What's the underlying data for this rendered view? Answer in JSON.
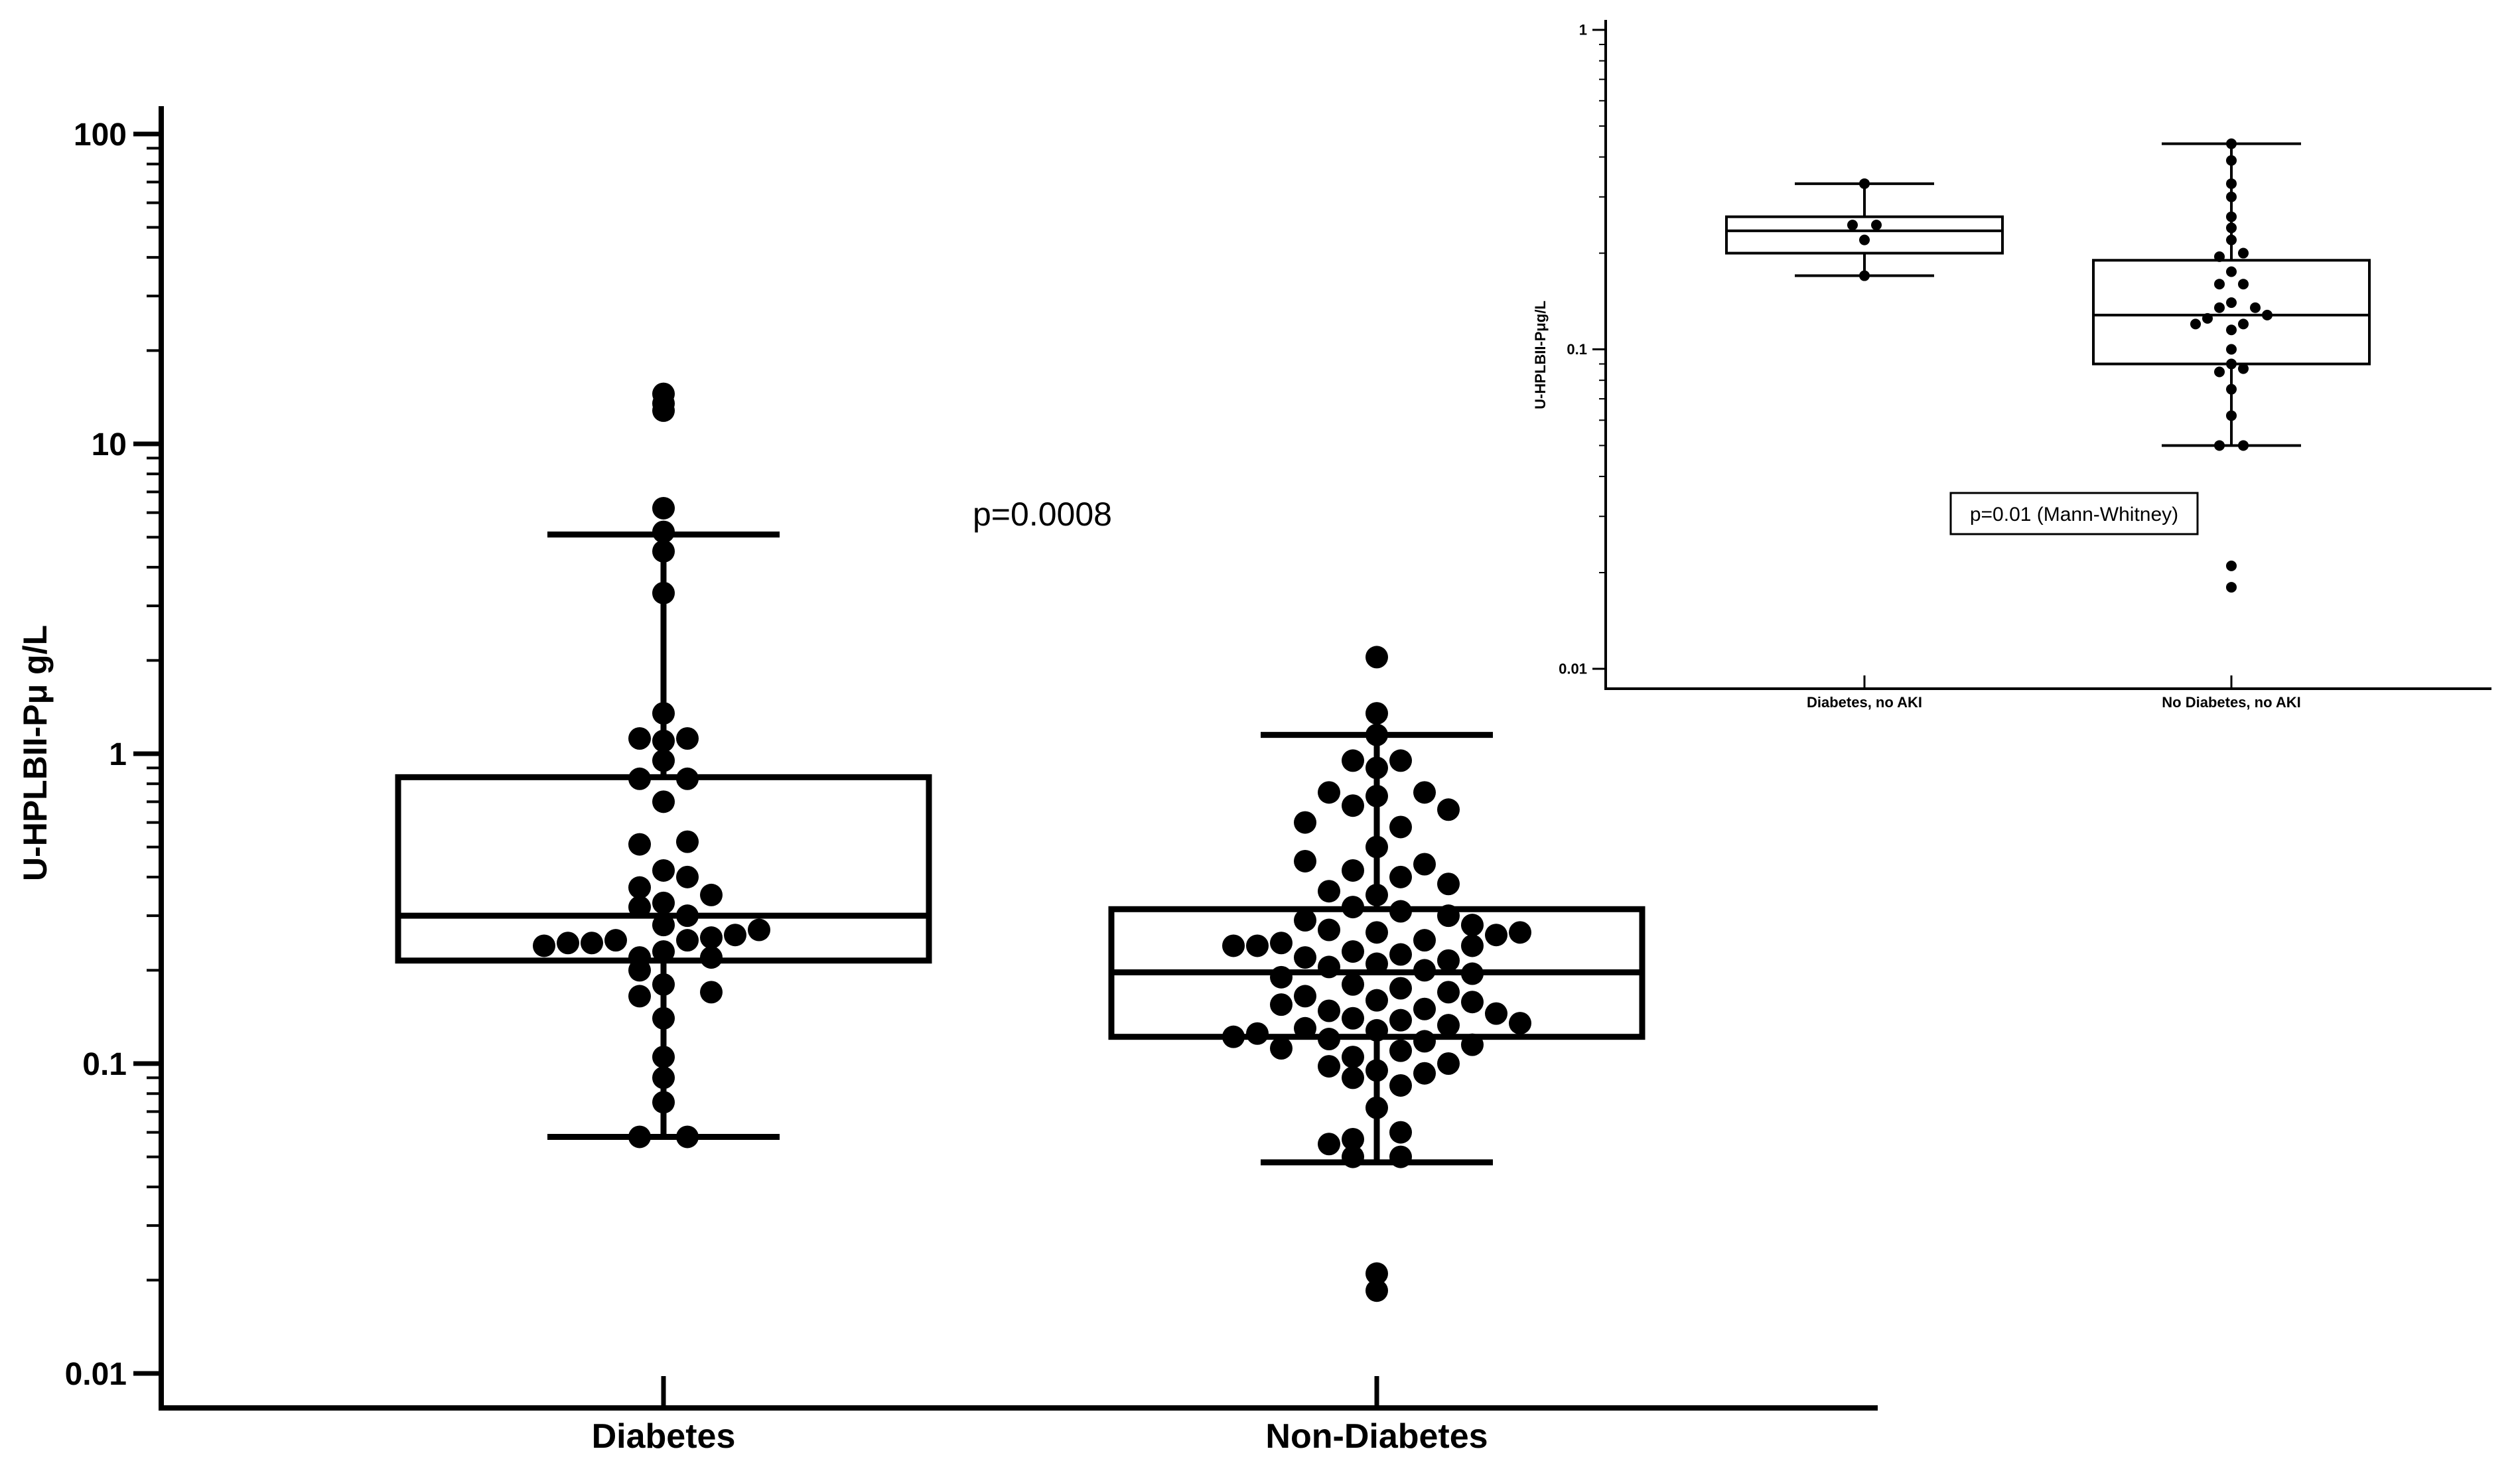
{
  "chart_data": [
    {
      "type": "box-scatter",
      "ylabel": "U-HPLBII-Pμ g/L",
      "yscale": "log",
      "ylim": [
        0.01,
        100
      ],
      "yticks": [
        {
          "value": 0.01,
          "label": "0.01"
        },
        {
          "value": 0.1,
          "label": "0.1"
        },
        {
          "value": 1,
          "label": "1"
        },
        {
          "value": 10,
          "label": "10"
        },
        {
          "value": 100,
          "label": "100"
        }
      ],
      "categories": [
        "Diabetes",
        "Non-Diabetes"
      ],
      "annotation": "p=0.0008",
      "groups": [
        {
          "name": "Diabetes",
          "box": {
            "whisker_low": 0.058,
            "q1": 0.215,
            "median": 0.3,
            "q3": 0.84,
            "whisker_high": 5.1
          },
          "points": [
            {
              "y": 14.5,
              "o": 0
            },
            {
              "y": 13.5,
              "o": 0
            },
            {
              "y": 12.8,
              "o": 0
            },
            {
              "y": 6.2,
              "o": 0
            },
            {
              "y": 5.2,
              "o": 0
            },
            {
              "y": 4.5,
              "o": 0
            },
            {
              "y": 3.3,
              "o": 0
            },
            {
              "y": 1.35,
              "o": 0
            },
            {
              "y": 1.12,
              "o": -1
            },
            {
              "y": 1.1,
              "o": 0
            },
            {
              "y": 1.12,
              "o": 1
            },
            {
              "y": 0.95,
              "o": 0
            },
            {
              "y": 0.83,
              "o": -1
            },
            {
              "y": 0.83,
              "o": 1
            },
            {
              "y": 0.7,
              "o": 0
            },
            {
              "y": 0.51,
              "o": -1
            },
            {
              "y": 0.52,
              "o": 1
            },
            {
              "y": 0.42,
              "o": 0
            },
            {
              "y": 0.4,
              "o": 1
            },
            {
              "y": 0.37,
              "o": -1
            },
            {
              "y": 0.35,
              "o": 2
            },
            {
              "y": 0.33,
              "o": 0
            },
            {
              "y": 0.32,
              "o": -1
            },
            {
              "y": 0.3,
              "o": 1
            },
            {
              "y": 0.28,
              "o": 0
            },
            {
              "y": 0.27,
              "o": 4
            },
            {
              "y": 0.26,
              "o": 3
            },
            {
              "y": 0.255,
              "o": 2
            },
            {
              "y": 0.25,
              "o": -2
            },
            {
              "y": 0.25,
              "o": 1
            },
            {
              "y": 0.245,
              "o": -3
            },
            {
              "y": 0.245,
              "o": -4
            },
            {
              "y": 0.24,
              "o": -5
            },
            {
              "y": 0.23,
              "o": 0
            },
            {
              "y": 0.22,
              "o": -1
            },
            {
              "y": 0.22,
              "o": 2
            },
            {
              "y": 0.2,
              "o": -1
            },
            {
              "y": 0.18,
              "o": 0
            },
            {
              "y": 0.17,
              "o": 2
            },
            {
              "y": 0.165,
              "o": -1
            },
            {
              "y": 0.14,
              "o": 0
            },
            {
              "y": 0.105,
              "o": 0
            },
            {
              "y": 0.09,
              "o": 0
            },
            {
              "y": 0.075,
              "o": 0
            },
            {
              "y": 0.058,
              "o": -1
            },
            {
              "y": 0.058,
              "o": 1
            }
          ]
        },
        {
          "name": "Non-Diabetes",
          "box": {
            "whisker_low": 0.048,
            "q1": 0.122,
            "median": 0.197,
            "q3": 0.315,
            "whisker_high": 1.15
          },
          "points": [
            {
              "y": 2.05,
              "o": 0
            },
            {
              "y": 1.35,
              "o": 0
            },
            {
              "y": 1.15,
              "o": 0
            },
            {
              "y": 0.95,
              "o": -1
            },
            {
              "y": 0.95,
              "o": 1
            },
            {
              "y": 0.9,
              "o": 0
            },
            {
              "y": 0.75,
              "o": -2
            },
            {
              "y": 0.73,
              "o": 0
            },
            {
              "y": 0.75,
              "o": 2
            },
            {
              "y": 0.68,
              "o": -1
            },
            {
              "y": 0.66,
              "o": 3
            },
            {
              "y": 0.6,
              "o": -3
            },
            {
              "y": 0.58,
              "o": 1
            },
            {
              "y": 0.5,
              "o": 0
            },
            {
              "y": 0.45,
              "o": -3
            },
            {
              "y": 0.44,
              "o": 2
            },
            {
              "y": 0.42,
              "o": -1
            },
            {
              "y": 0.4,
              "o": 1
            },
            {
              "y": 0.38,
              "o": 3
            },
            {
              "y": 0.36,
              "o": -2
            },
            {
              "y": 0.35,
              "o": 0
            },
            {
              "y": 0.32,
              "o": -1
            },
            {
              "y": 0.31,
              "o": 1
            },
            {
              "y": 0.3,
              "o": 3
            },
            {
              "y": 0.29,
              "o": -3
            },
            {
              "y": 0.28,
              "o": 4
            },
            {
              "y": 0.27,
              "o": -2
            },
            {
              "y": 0.265,
              "o": 0
            },
            {
              "y": 0.265,
              "o": 6
            },
            {
              "y": 0.26,
              "o": 5
            },
            {
              "y": 0.25,
              "o": 2
            },
            {
              "y": 0.245,
              "o": -4
            },
            {
              "y": 0.24,
              "o": -5
            },
            {
              "y": 0.24,
              "o": -6
            },
            {
              "y": 0.24,
              "o": 4
            },
            {
              "y": 0.23,
              "o": -1
            },
            {
              "y": 0.225,
              "o": 1
            },
            {
              "y": 0.22,
              "o": -3
            },
            {
              "y": 0.215,
              "o": 3
            },
            {
              "y": 0.21,
              "o": 0
            },
            {
              "y": 0.205,
              "o": -2
            },
            {
              "y": 0.2,
              "o": 2
            },
            {
              "y": 0.195,
              "o": 4
            },
            {
              "y": 0.19,
              "o": -4
            },
            {
              "y": 0.18,
              "o": -1
            },
            {
              "y": 0.175,
              "o": 1
            },
            {
              "y": 0.17,
              "o": 3
            },
            {
              "y": 0.165,
              "o": -3
            },
            {
              "y": 0.16,
              "o": 0
            },
            {
              "y": 0.158,
              "o": 4
            },
            {
              "y": 0.155,
              "o": -4
            },
            {
              "y": 0.15,
              "o": 2
            },
            {
              "y": 0.148,
              "o": -2
            },
            {
              "y": 0.145,
              "o": 5
            },
            {
              "y": 0.14,
              "o": -1
            },
            {
              "y": 0.138,
              "o": 1
            },
            {
              "y": 0.135,
              "o": 6
            },
            {
              "y": 0.133,
              "o": 3
            },
            {
              "y": 0.13,
              "o": -3
            },
            {
              "y": 0.128,
              "o": 0
            },
            {
              "y": 0.125,
              "o": -5
            },
            {
              "y": 0.122,
              "o": -6
            },
            {
              "y": 0.12,
              "o": -2
            },
            {
              "y": 0.118,
              "o": 2
            },
            {
              "y": 0.115,
              "o": 4
            },
            {
              "y": 0.112,
              "o": -4
            },
            {
              "y": 0.11,
              "o": 1
            },
            {
              "y": 0.105,
              "o": -1
            },
            {
              "y": 0.1,
              "o": 3
            },
            {
              "y": 0.098,
              "o": -2
            },
            {
              "y": 0.095,
              "o": 0
            },
            {
              "y": 0.093,
              "o": 2
            },
            {
              "y": 0.09,
              "o": -1
            },
            {
              "y": 0.085,
              "o": 1
            },
            {
              "y": 0.072,
              "o": 0
            },
            {
              "y": 0.06,
              "o": 1
            },
            {
              "y": 0.057,
              "o": -1
            },
            {
              "y": 0.055,
              "o": -2
            },
            {
              "y": 0.05,
              "o": -1
            },
            {
              "y": 0.05,
              "o": 1
            },
            {
              "y": 0.021,
              "o": 0
            },
            {
              "y": 0.0185,
              "o": 0
            }
          ]
        }
      ]
    },
    {
      "type": "box-scatter",
      "ylabel": "U-HPLBII-Pμg/L",
      "yscale": "log",
      "ylim": [
        0.01,
        1
      ],
      "yticks": [
        {
          "value": 0.01,
          "label": "0.01"
        },
        {
          "value": 0.1,
          "label": "0.1"
        },
        {
          "value": 1,
          "label": "1"
        }
      ],
      "categories": [
        "Diabetes, no AKI",
        "No Diabetes, no AKI"
      ],
      "annotation": "p=0.01 (Mann-Whitney)",
      "groups": [
        {
          "name": "Diabetes, no AKI",
          "box": {
            "whisker_low": 0.17,
            "q1": 0.2,
            "median": 0.235,
            "q3": 0.26,
            "whisker_high": 0.33
          },
          "points": [
            {
              "y": 0.33,
              "o": 0
            },
            {
              "y": 0.245,
              "o": -1
            },
            {
              "y": 0.245,
              "o": 1
            },
            {
              "y": 0.22,
              "o": 0
            },
            {
              "y": 0.17,
              "o": 0
            }
          ]
        },
        {
          "name": "No Diabetes, no AKI",
          "box": {
            "whisker_low": 0.05,
            "q1": 0.09,
            "median": 0.128,
            "q3": 0.19,
            "whisker_high": 0.44
          },
          "points": [
            {
              "y": 0.44,
              "o": 0
            },
            {
              "y": 0.39,
              "o": 0
            },
            {
              "y": 0.33,
              "o": 0
            },
            {
              "y": 0.3,
              "o": 0
            },
            {
              "y": 0.26,
              "o": 0
            },
            {
              "y": 0.24,
              "o": 0
            },
            {
              "y": 0.22,
              "o": 0
            },
            {
              "y": 0.195,
              "o": -1
            },
            {
              "y": 0.2,
              "o": 1
            },
            {
              "y": 0.175,
              "o": 0
            },
            {
              "y": 0.16,
              "o": -1
            },
            {
              "y": 0.16,
              "o": 1
            },
            {
              "y": 0.14,
              "o": 0
            },
            {
              "y": 0.135,
              "o": -1
            },
            {
              "y": 0.135,
              "o": 2
            },
            {
              "y": 0.128,
              "o": 3
            },
            {
              "y": 0.125,
              "o": -2
            },
            {
              "y": 0.12,
              "o": -3
            },
            {
              "y": 0.12,
              "o": 1
            },
            {
              "y": 0.115,
              "o": 0
            },
            {
              "y": 0.1,
              "o": 0
            },
            {
              "y": 0.09,
              "o": 0
            },
            {
              "y": 0.085,
              "o": -1
            },
            {
              "y": 0.087,
              "o": 1
            },
            {
              "y": 0.075,
              "o": 0
            },
            {
              "y": 0.062,
              "o": 0
            },
            {
              "y": 0.05,
              "o": -1
            },
            {
              "y": 0.05,
              "o": 1
            },
            {
              "y": 0.021,
              "o": 0
            },
            {
              "y": 0.018,
              "o": 0
            }
          ]
        }
      ]
    }
  ]
}
